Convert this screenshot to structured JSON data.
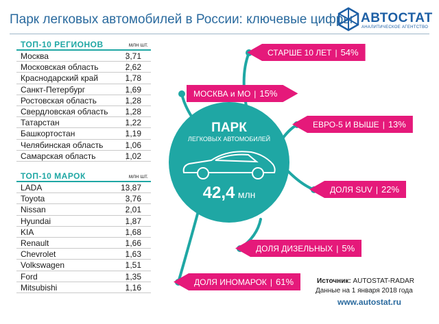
{
  "title": "Парк легковых автомобилей в России: ключевые цифры",
  "logo": {
    "name": "АВТОСТАТ",
    "subtitle": "АНАЛИТИЧЕСКОЕ АГЕНТСТВО",
    "icon": "hexagon-logo-icon",
    "color": "#1d5fa5"
  },
  "regions": {
    "title": "ТОП-10 РЕГИОНОВ",
    "unit": "млн шт.",
    "rows": [
      {
        "name": "Москва",
        "value": "3,71"
      },
      {
        "name": "Московская область",
        "value": "2,62"
      },
      {
        "name": "Краснодарский край",
        "value": "1,78"
      },
      {
        "name": "Санкт-Петербург",
        "value": "1,69"
      },
      {
        "name": "Ростовская область",
        "value": "1,28"
      },
      {
        "name": "Свердловская область",
        "value": "1,28"
      },
      {
        "name": "Татарстан",
        "value": "1,22"
      },
      {
        "name": "Башкортостан",
        "value": "1,19"
      },
      {
        "name": "Челябинская область",
        "value": "1,06"
      },
      {
        "name": "Самарская область",
        "value": "1,02"
      }
    ]
  },
  "brands": {
    "title": "ТОП-10 МАРОК",
    "unit": "млн шт.",
    "rows": [
      {
        "name": "LADA",
        "value": "13,87"
      },
      {
        "name": "Toyota",
        "value": "3,76"
      },
      {
        "name": "Nissan",
        "value": "2,01"
      },
      {
        "name": "Hyundai",
        "value": "1,87"
      },
      {
        "name": "KIA",
        "value": "1,68"
      },
      {
        "name": "Renault",
        "value": "1,66"
      },
      {
        "name": "Chevrolet",
        "value": "1,63"
      },
      {
        "name": "Volkswagen",
        "value": "1,51"
      },
      {
        "name": "Ford",
        "value": "1,35"
      },
      {
        "name": "Mitsubishi",
        "value": "1,16"
      }
    ]
  },
  "center": {
    "title": "ПАРК",
    "subtitle": "ЛЕГКОВЫХ АВТОМОБИЛЕЙ",
    "value": "42,4",
    "unit": "млн",
    "icon": "car-outline-icon",
    "color": "#1fa7a4"
  },
  "tags": [
    {
      "label": "СТАРШЕ 10 ЛЕТ",
      "value": "54%"
    },
    {
      "label": "МОСКВА и МО",
      "value": "15%"
    },
    {
      "label": "ЕВРО-5 И ВЫШЕ",
      "value": "13%"
    },
    {
      "label": "ДОЛЯ SUV",
      "value": "22%"
    },
    {
      "label": "ДОЛЯ ДИЗЕЛЬНЫХ",
      "value": "5%"
    },
    {
      "label": "ДОЛЯ ИНОМАРОК",
      "value": "61%"
    }
  ],
  "tag_color": "#e5197a",
  "footer": {
    "source_label": "Источник:",
    "source_value": "AUTOSTAT-RADAR",
    "date": "Данные на 1 января 2018 года",
    "url": "www.autostat.ru"
  }
}
